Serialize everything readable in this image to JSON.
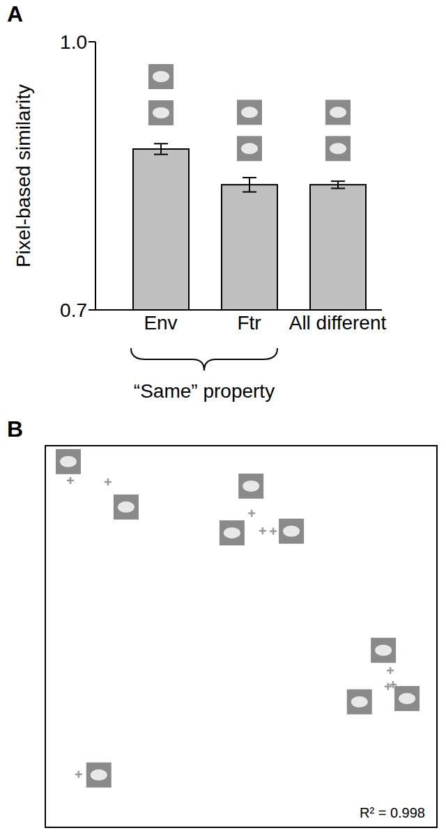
{
  "chart_data": [
    {
      "type": "bar",
      "title": "A",
      "categories": [
        "Env",
        "Ftr",
        "All different"
      ],
      "values": [
        0.88,
        0.84,
        0.84
      ],
      "errors": [
        0.006,
        0.008,
        0.004
      ],
      "ylabel": "Pixel-based similarity",
      "ylim": [
        0.7,
        1.0
      ],
      "yticks": [
        {
          "value": 0.7,
          "label": "0.7"
        },
        {
          "value": 1.0,
          "label": "1.0"
        }
      ],
      "color": "#c0c0c0",
      "annotation": "“Same” property"
    },
    {
      "type": "scatter",
      "title": "B",
      "x": [
        6.4,
        16.0,
        8.5,
        52.7,
        55.5,
        58.2,
        88.1,
        87.5,
        88.8
      ],
      "y": [
        90.9,
        90.5,
        13.9,
        82.3,
        77.7,
        77.6,
        41.1,
        36.9,
        37.4
      ],
      "xlim": [
        0,
        100
      ],
      "ylim": [
        0,
        100
      ],
      "tick_labels": false,
      "marker": "plus",
      "color": "#999999",
      "annotation": "R² = 0.998"
    }
  ]
}
